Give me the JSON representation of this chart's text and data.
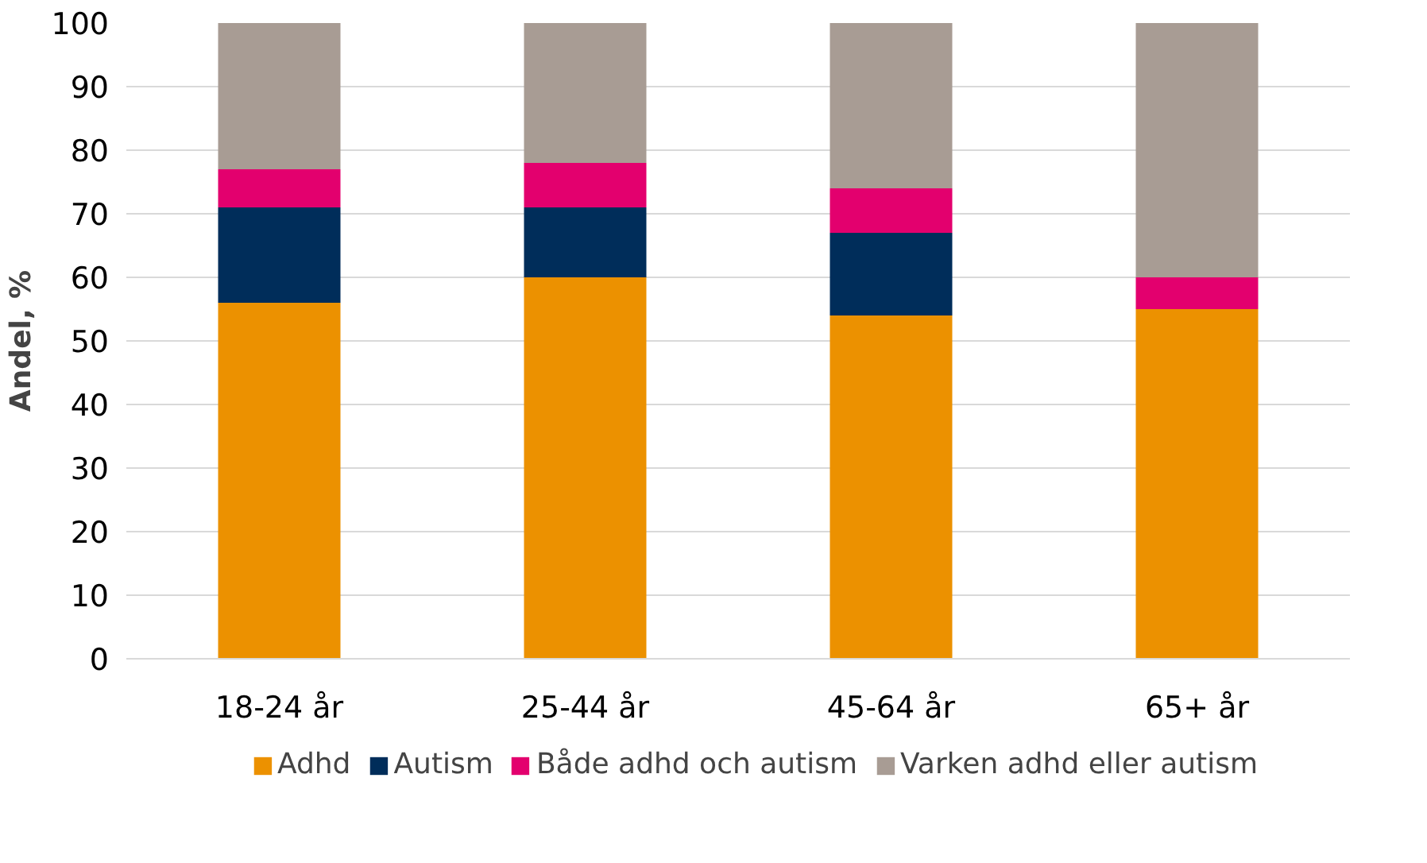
{
  "chart_data": {
    "type": "bar",
    "stacked": true,
    "ylabel": "Andel, %",
    "categories": [
      "18-24 år",
      "25-44 år",
      "45-64 år",
      "65+ år"
    ],
    "series": [
      {
        "name": "Adhd",
        "color": "#ec9100",
        "values": [
          56,
          60,
          54,
          55
        ]
      },
      {
        "name": "Autism",
        "color": "#002d5a",
        "values": [
          15,
          11,
          13,
          0
        ]
      },
      {
        "name": "Både adhd och autism",
        "color": "#e3006e",
        "values": [
          6,
          7,
          7,
          5
        ]
      },
      {
        "name": "Varken adhd eller autism",
        "color": "#a89c94",
        "values": [
          23,
          22,
          26,
          40
        ]
      }
    ],
    "ylim": [
      0,
      100
    ],
    "yticks": [
      0,
      10,
      20,
      30,
      40,
      50,
      60,
      70,
      80,
      90,
      100
    ],
    "grid": "y",
    "legend": "bottom"
  }
}
